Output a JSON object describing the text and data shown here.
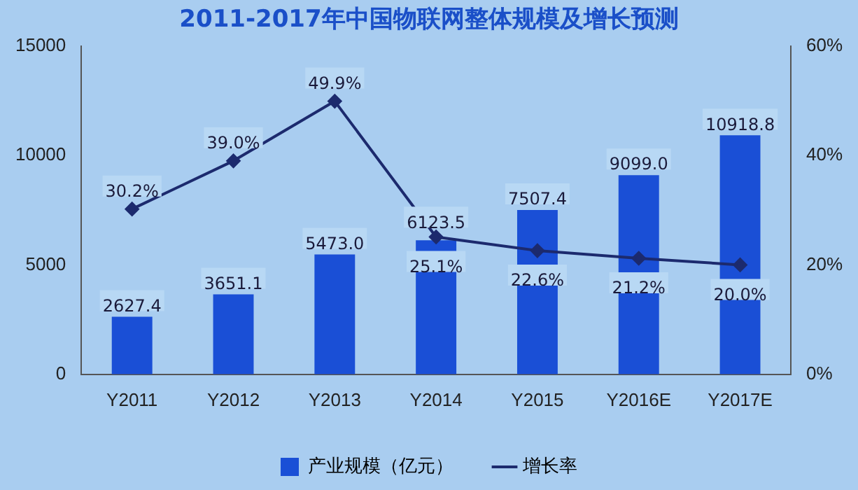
{
  "chart_data": {
    "type": "bar",
    "title": "2011-2017年中国物联网整体规模及增长预测",
    "categories": [
      "Y2011",
      "Y2012",
      "Y2013",
      "Y2014",
      "Y2015",
      "Y2016E",
      "Y2017E"
    ],
    "series": [
      {
        "name": "产业规模（亿元）",
        "color": "#1a4fd6",
        "values": [
          2627.4,
          3651.1,
          5473.0,
          6123.5,
          7507.4,
          9099.0,
          10918.8
        ],
        "value_labels": [
          "2627.4",
          "3651.1",
          "5473.0",
          "6123.5",
          "7507.4",
          "9099.0",
          "10918.8"
        ]
      },
      {
        "name": "增长率",
        "type": "line",
        "axis": "y2",
        "color": "#1c2a6e",
        "values": [
          30.2,
          39.0,
          49.9,
          25.1,
          22.6,
          21.2,
          20.0
        ],
        "value_labels": [
          "30.2%",
          "39.0%",
          "49.9%",
          "25.1%",
          "22.6%",
          "21.2%",
          "20.0%"
        ]
      }
    ],
    "ylim": [
      0,
      15000
    ],
    "yticks": [
      0,
      5000,
      10000,
      15000
    ],
    "y2lim": [
      0,
      60
    ],
    "y2ticks": [
      {
        "value": 0,
        "label": "0%"
      },
      {
        "value": 20,
        "label": "20%"
      },
      {
        "value": 40,
        "label": "40%"
      },
      {
        "value": 60,
        "label": "60%"
      }
    ],
    "legend": "bottom",
    "grid": false,
    "marker": "diamond",
    "line_style": "solid"
  }
}
